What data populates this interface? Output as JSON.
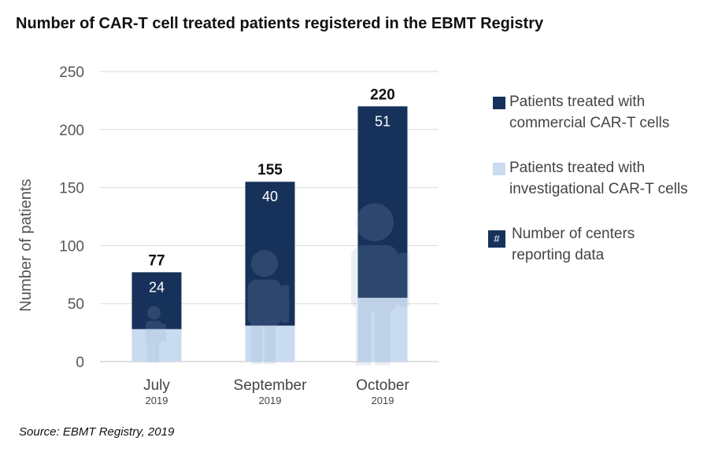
{
  "title": "Number of CAR-T cell treated patients registered in the EBMT Registry",
  "source": "Source: EBMT Registry, 2019",
  "colors": {
    "commercial": "#17325a",
    "investigational": "#c9dbef",
    "grid": "#d9d9d9"
  },
  "chart_data": {
    "type": "bar",
    "stacked": true,
    "categories": [
      "July",
      "September",
      "October"
    ],
    "category_years": [
      "2019",
      "2019",
      "2019"
    ],
    "series": [
      {
        "name": "Patients treated with investigational CAR-T cells",
        "values": [
          28,
          31,
          55
        ]
      },
      {
        "name": "Patients treated with commercial CAR-T cells",
        "values": [
          49,
          124,
          165
        ]
      }
    ],
    "totals": [
      77,
      155,
      220
    ],
    "centers": [
      24,
      40,
      51
    ],
    "ylabel": "Number of patients",
    "ylim": [
      0,
      250
    ],
    "yticks": [
      0,
      50,
      100,
      150,
      200,
      250
    ],
    "grid": true
  },
  "legend": [
    {
      "label_line1": "Patients treated with",
      "label_line2": "commercial CAR-T cells"
    },
    {
      "label_line1": "Patients treated with",
      "label_line2": "investigational CAR-T cells"
    },
    {
      "label_line1": "Number of centers",
      "label_line2": "reporting data",
      "symbol": "#"
    }
  ]
}
